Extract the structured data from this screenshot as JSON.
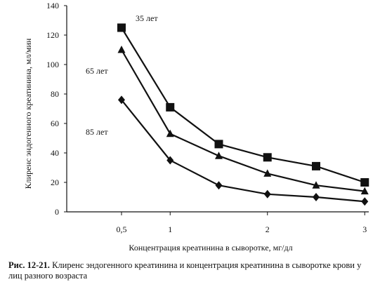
{
  "chart_data": {
    "type": "line",
    "xlabel": "Концентрация креатинина в сыворотке, мг/дл",
    "ylabel": "Клиренс эндогенного креатинина, мл/мин",
    "xlim": [
      0.3,
      3.05
    ],
    "ylim": [
      0,
      140
    ],
    "x_ticks": [
      "0,5",
      "1",
      "2",
      "3"
    ],
    "x_tick_values": [
      0.5,
      1,
      2,
      3
    ],
    "y_ticks": [
      "0",
      "20",
      "40",
      "60",
      "80",
      "100",
      "120",
      "140"
    ],
    "y_tick_values": [
      0,
      20,
      40,
      60,
      80,
      100,
      120,
      140
    ],
    "grid": false,
    "legend": "inline",
    "series": [
      {
        "name": "35 лет",
        "marker": "square",
        "x": [
          0.5,
          1.0,
          1.5,
          2.0,
          2.5,
          3.0
        ],
        "y": [
          125,
          71,
          46,
          37,
          31,
          20
        ]
      },
      {
        "name": "65 лет",
        "marker": "triangle",
        "x": [
          0.5,
          1.0,
          1.5,
          2.0,
          2.5,
          3.0
        ],
        "y": [
          110,
          53,
          38,
          26,
          18,
          14
        ]
      },
      {
        "name": "85 лет",
        "marker": "diamond",
        "x": [
          0.5,
          1.0,
          1.5,
          2.0,
          2.5,
          3.0
        ],
        "y": [
          76,
          35,
          18,
          12,
          10,
          7
        ]
      }
    ],
    "colors": {
      "line": "#111111",
      "marker": "#111111"
    }
  },
  "caption": {
    "label": "Рис. 12-21.",
    "text": "Клиренс эндогенного креатинина и концентрация креатинина в сыворотке крови у лиц разного возраста"
  }
}
